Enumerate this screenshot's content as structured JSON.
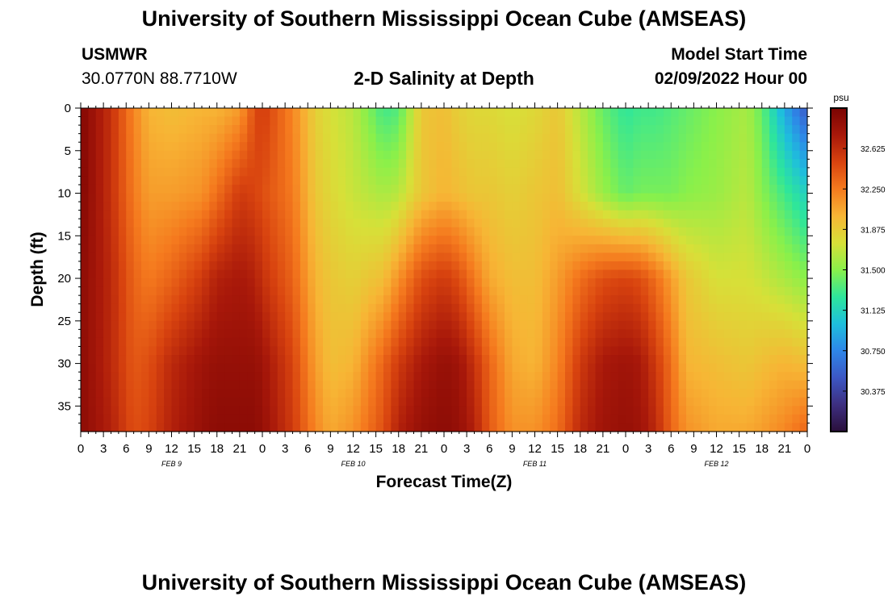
{
  "header": {
    "title": "University of Southern Mississippi Ocean Cube (AMSEAS)",
    "station": "USMWR",
    "coords": "30.0770N  88.7710W",
    "subtitle": "2-D Salinity at Depth",
    "model_start_label": "Model Start Time",
    "model_start_value": "02/09/2022 Hour 00",
    "footer_title": "University of Southern Mississippi Ocean Cube (AMSEAS)"
  },
  "chart_data": {
    "type": "heatmap",
    "title": "2-D Salinity at Depth",
    "xlabel": "Forecast Time(Z)",
    "ylabel": "Depth (ft)",
    "x_tick_labels": [
      "0",
      "3",
      "6",
      "9",
      "12",
      "15",
      "18",
      "21",
      "0",
      "3",
      "6",
      "9",
      "12",
      "15",
      "18",
      "21",
      "0",
      "3",
      "6",
      "9",
      "12",
      "15",
      "18",
      "21",
      "0",
      "3",
      "6",
      "9",
      "12",
      "15",
      "18",
      "21",
      "0"
    ],
    "xlim_hours": [
      0,
      96
    ],
    "day_labels": [
      {
        "label": "FEB 9",
        "hour": 12
      },
      {
        "label": "FEB 10",
        "hour": 36
      },
      {
        "label": "FEB 11",
        "hour": 60
      },
      {
        "label": "FEB 12",
        "hour": 84
      }
    ],
    "y_ticks": [
      0,
      5,
      10,
      15,
      20,
      25,
      30,
      35
    ],
    "ylim": [
      0,
      38
    ],
    "colorbar": {
      "unit": "psu",
      "range": [
        30.0,
        33.0
      ],
      "ticks": [
        "32.625",
        "32.250",
        "31.875",
        "31.500",
        "31.125",
        "30.750",
        "30.375"
      ],
      "colormap": [
        "#2a0f3b",
        "#3d2f80",
        "#3c57c4",
        "#2e86e8",
        "#1ebfdc",
        "#2ee69b",
        "#8af04a",
        "#d7e038",
        "#f7b535",
        "#f57a1e",
        "#d8430f",
        "#a8180a",
        "#7a0402"
      ]
    },
    "time_hours": [
      0,
      4,
      7,
      9,
      12,
      16,
      18,
      21,
      23,
      24,
      28,
      31,
      33,
      36,
      40,
      42,
      45,
      48,
      50,
      52,
      54,
      57,
      60,
      63,
      66,
      69,
      72,
      74,
      76,
      78,
      80,
      84,
      88,
      90,
      93,
      96
    ],
    "depth_ft": [
      0,
      10,
      20,
      30,
      38
    ],
    "salinity_psu": [
      [
        32.95,
        32.6,
        32.2,
        32.0,
        31.95,
        32.0,
        32.0,
        32.1,
        32.45,
        32.55,
        32.2,
        31.85,
        31.75,
        31.65,
        31.3,
        31.35,
        31.9,
        31.95,
        31.85,
        31.8,
        31.8,
        31.75,
        31.8,
        31.9,
        31.65,
        31.4,
        31.25,
        31.3,
        31.3,
        31.35,
        31.4,
        31.5,
        31.6,
        31.4,
        30.9,
        30.5
      ],
      [
        32.95,
        32.6,
        32.25,
        32.1,
        32.1,
        32.15,
        32.3,
        32.55,
        32.5,
        32.45,
        32.25,
        31.9,
        31.8,
        31.7,
        31.6,
        31.65,
        31.9,
        32.0,
        31.95,
        31.9,
        31.9,
        31.85,
        31.9,
        31.95,
        31.75,
        31.55,
        31.4,
        31.45,
        31.45,
        31.45,
        31.5,
        31.55,
        31.65,
        31.5,
        31.3,
        31.1
      ],
      [
        32.9,
        32.65,
        32.35,
        32.25,
        32.35,
        32.55,
        32.7,
        32.75,
        32.7,
        32.6,
        32.35,
        32.0,
        31.9,
        31.85,
        31.95,
        32.15,
        32.45,
        32.55,
        32.45,
        32.25,
        32.05,
        31.95,
        31.95,
        32.1,
        32.3,
        32.45,
        32.5,
        32.45,
        32.3,
        32.1,
        31.9,
        31.75,
        31.75,
        31.7,
        31.6,
        31.5
      ],
      [
        32.9,
        32.65,
        32.4,
        32.45,
        32.65,
        32.8,
        32.85,
        32.85,
        32.85,
        32.8,
        32.5,
        32.1,
        31.95,
        32.0,
        32.35,
        32.55,
        32.75,
        32.85,
        32.8,
        32.6,
        32.35,
        32.05,
        32.0,
        32.2,
        32.55,
        32.75,
        32.8,
        32.75,
        32.55,
        32.3,
        32.0,
        31.95,
        31.9,
        31.95,
        32.0,
        31.95
      ],
      [
        32.9,
        32.7,
        32.45,
        32.5,
        32.7,
        32.85,
        32.9,
        32.9,
        32.9,
        32.85,
        32.55,
        32.2,
        32.05,
        32.15,
        32.45,
        32.7,
        32.85,
        32.9,
        32.85,
        32.7,
        32.4,
        32.15,
        32.15,
        32.3,
        32.65,
        32.8,
        32.85,
        32.8,
        32.65,
        32.35,
        32.15,
        32.05,
        32.05,
        32.1,
        32.2,
        32.35
      ]
    ]
  }
}
